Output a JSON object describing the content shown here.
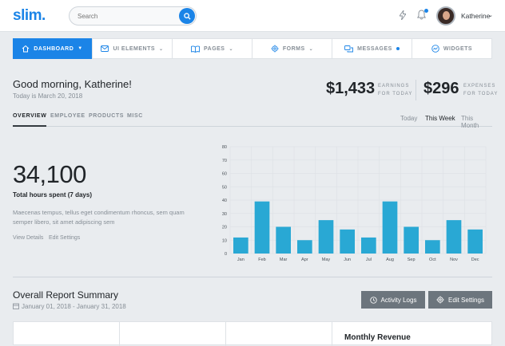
{
  "header": {
    "logo": "slim.",
    "search_placeholder": "Search",
    "user_name": "Katherine"
  },
  "nav": {
    "items": [
      {
        "label": "DASHBOARD",
        "icon": "home-icon"
      },
      {
        "label": "UI ELEMENTS",
        "icon": "mail-icon"
      },
      {
        "label": "PAGES",
        "icon": "book-icon"
      },
      {
        "label": "FORMS",
        "icon": "gear-icon"
      },
      {
        "label": "MESSAGES",
        "icon": "chat-icon"
      },
      {
        "label": "WIDGETS",
        "icon": "gauge-icon"
      }
    ]
  },
  "summary": {
    "greeting": "Good morning, Katherine!",
    "date": "Today is March 20, 2018",
    "earnings_value": "$1,433",
    "earnings_label_1": "EARNINGS",
    "earnings_label_2": "FOR TODAY",
    "expenses_value": "$296",
    "expenses_label_1": "EXPENSES",
    "expenses_label_2": "FOR TODAY"
  },
  "tabs": {
    "items": [
      "OVERVIEW",
      "EMPLOYEE",
      "PRODUCTS",
      "MISC"
    ],
    "periods": [
      "Today",
      "This Week",
      "This Month"
    ]
  },
  "stats": {
    "big_number": "34,100",
    "big_label": "Total hours spent (7 days)",
    "description": "Maecenas tempus, tellus eget condimentum rhoncus, sem quam semper libero, sit amet adipiscing sem",
    "link_view": "View Details",
    "link_edit": "Edit Settings"
  },
  "chart_data": {
    "type": "bar",
    "categories": [
      "Jan",
      "Feb",
      "Mar",
      "Apr",
      "May",
      "Jun",
      "Jul",
      "Aug",
      "Sep",
      "Oct",
      "Nov",
      "Dec"
    ],
    "values": [
      12,
      39,
      20,
      10,
      25,
      18,
      12,
      39,
      20,
      10,
      25,
      18
    ],
    "ylim": [
      0,
      80
    ],
    "yticks": [
      "0",
      "10",
      "20",
      "30",
      "40",
      "50",
      "60",
      "70",
      "80"
    ],
    "bar_color": "#29a8d4",
    "grid": true
  },
  "report": {
    "title": "Overall Report Summary",
    "range": "January 01, 2018 - January 31, 2018",
    "activity_button": "Activity Logs",
    "settings_button": "Edit Settings",
    "card_title": "Monthly Revenue"
  }
}
